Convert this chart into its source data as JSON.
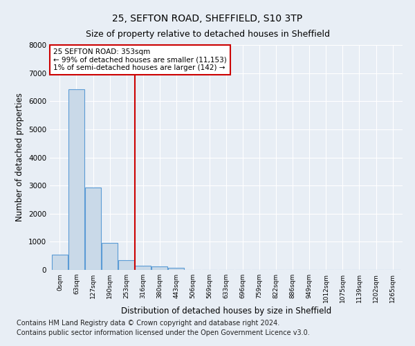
{
  "title1": "25, SEFTON ROAD, SHEFFIELD, S10 3TP",
  "title2": "Size of property relative to detached houses in Sheffield",
  "xlabel": "Distribution of detached houses by size in Sheffield",
  "ylabel": "Number of detached properties",
  "footnote1": "Contains HM Land Registry data © Crown copyright and database right 2024.",
  "footnote2": "Contains public sector information licensed under the Open Government Licence v3.0.",
  "bar_labels": [
    "0sqm",
    "63sqm",
    "127sqm",
    "190sqm",
    "253sqm",
    "316sqm",
    "380sqm",
    "443sqm",
    "506sqm",
    "569sqm",
    "633sqm",
    "696sqm",
    "759sqm",
    "822sqm",
    "886sqm",
    "949sqm",
    "1012sqm",
    "1075sqm",
    "1139sqm",
    "1202sqm",
    "1265sqm"
  ],
  "bar_values": [
    550,
    6430,
    2930,
    970,
    340,
    155,
    115,
    75,
    0,
    0,
    0,
    0,
    0,
    0,
    0,
    0,
    0,
    0,
    0,
    0,
    0
  ],
  "bar_color": "#c9d9e8",
  "bar_edge_color": "#5b9bd5",
  "annotation_line1": "25 SEFTON ROAD: 353sqm",
  "annotation_line2": "← 99% of detached houses are smaller (11,153)",
  "annotation_line3": "1% of semi-detached houses are larger (142) →",
  "annotation_box_color": "#ffffff",
  "annotation_box_edge_color": "#cc0000",
  "vline_x": 4.52,
  "vline_color": "#cc0000",
  "ylim": [
    0,
    8000
  ],
  "yticks": [
    0,
    1000,
    2000,
    3000,
    4000,
    5000,
    6000,
    7000,
    8000
  ],
  "background_color": "#e8eef5",
  "axes_background": "#e8eef5",
  "grid_color": "#ffffff",
  "title1_fontsize": 10,
  "title2_fontsize": 9,
  "ylabel_fontsize": 8.5,
  "xlabel_fontsize": 8.5,
  "footnote_fontsize": 7
}
